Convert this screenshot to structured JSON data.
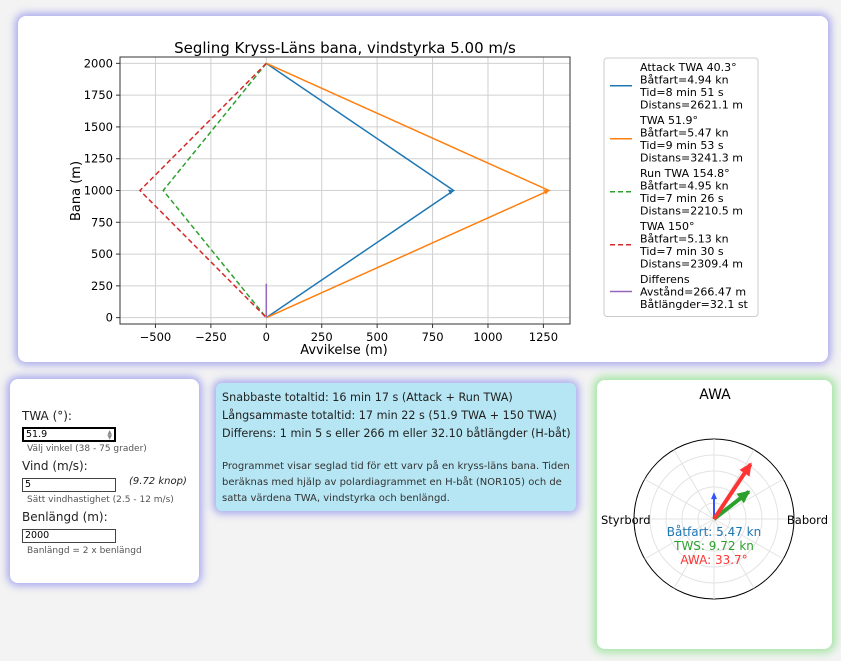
{
  "chart_data": [
    {
      "type": "line",
      "title": "Segling Kryss-Läns bana, vindstyrka 5.00 m/s",
      "xlabel": "Avvikelse (m)",
      "ylabel": "Bana (m)",
      "xlim": [
        -660,
        1370
      ],
      "ylim": [
        -50,
        2050
      ],
      "xticks": [
        -500,
        -250,
        0,
        250,
        500,
        750,
        1000,
        1250
      ],
      "xtick_labels": [
        "−500",
        "−250",
        "0",
        "250",
        "500",
        "750",
        "1000",
        "1250"
      ],
      "yticks": [
        0,
        250,
        500,
        750,
        1000,
        1250,
        1500,
        1750,
        2000
      ],
      "ytick_labels": [
        "0",
        "250",
        "500",
        "750",
        "1000",
        "1250",
        "1500",
        "1750",
        "2000"
      ],
      "grid": true,
      "legend_position": "right-outside",
      "series": [
        {
          "color": "#1f77b4",
          "dash": "solid",
          "x": [
            0,
            845,
            0
          ],
          "y": [
            0,
            1000,
            2000
          ],
          "legend": [
            "Attack TWA 40.3°",
            "Båtfart=4.94 kn",
            "Tid=8 min 51 s",
            "Distans=2621.1 m"
          ]
        },
        {
          "color": "#ff7f0e",
          "dash": "solid",
          "x": [
            0,
            1275,
            0
          ],
          "y": [
            0,
            1000,
            2000
          ],
          "legend": [
            "TWA 51.9°",
            "Båtfart=5.47 kn",
            "Tid=9 min 53 s",
            "Distans=3241.3 m"
          ]
        },
        {
          "color": "#2ca02c",
          "dash": "dashed",
          "x": [
            0,
            -465,
            0
          ],
          "y": [
            2000,
            1000,
            0
          ],
          "legend": [
            "Run TWA 154.8°",
            "Båtfart=4.95 kn",
            "Tid=7 min 26 s",
            "Distans=2210.5 m"
          ]
        },
        {
          "color": "#d62728",
          "dash": "dashed",
          "x": [
            0,
            -570,
            0
          ],
          "y": [
            2000,
            1000,
            0
          ],
          "legend": [
            "TWA 150°",
            "Båtfart=5.13 kn",
            "Tid=7 min 30 s",
            "Distans=2309.4 m"
          ]
        },
        {
          "color": "#9467bd",
          "dash": "solid",
          "x": [
            0,
            0
          ],
          "y": [
            0,
            266.47
          ],
          "legend": [
            "Differens",
            "Avstånd=266.47 m",
            "Båtlängder=32.1 st"
          ]
        }
      ]
    },
    {
      "type": "polar",
      "title": "AWA",
      "left_label": "Styrbord",
      "right_label": "Babord",
      "annotations": [
        {
          "text": "Båtfart: 5.47 kn",
          "color": "#1f77b4"
        },
        {
          "text": "TWS: 9.72 kn",
          "color": "#2ca02c"
        },
        {
          "text": "AWA: 33.7°",
          "color": "#ff3333"
        }
      ],
      "arrows": [
        {
          "name": "boat-speed",
          "angle_deg": 0,
          "magnitude": 5.47,
          "color": "#3355ff"
        },
        {
          "name": "true-wind",
          "angle_deg": 51.9,
          "magnitude": 9.72,
          "color": "#2ca02c"
        },
        {
          "name": "apparent-wind",
          "angle_deg": 33.7,
          "magnitude": 14.5,
          "color": "#ff3333"
        }
      ]
    }
  ],
  "inputs": {
    "twa": {
      "label": "TWA (°):",
      "value": "51.9",
      "hint": "Välj vinkel (38 - 75 grader)"
    },
    "wind": {
      "label": "Vind (m/s):",
      "value": "5",
      "knots": "(9.72 knop)",
      "hint": "Sätt vindhastighet (2.5 - 12 m/s)"
    },
    "course": {
      "label": "Benlängd (m):",
      "value": "2000",
      "hint": "Banlängd = 2 x benlängd"
    }
  },
  "results": {
    "fastest": "Snabbaste totaltid: 16 min 17 s (Attack + Run TWA)",
    "slowest": "Långsammaste totaltid: 17 min 22 s (51.9 TWA + 150 TWA)",
    "difference": "Differens: 1 min 5 s eller 266 m eller 32.10 båtlängder (H-båt)",
    "description": "Programmet visar seglad tid för ett varv på en kryss-läns bana. Tiden beräknas med hjälp av polardiagrammet en H-båt (NOR105) och de satta värdena TWA, vindstyrka och benlängd."
  }
}
